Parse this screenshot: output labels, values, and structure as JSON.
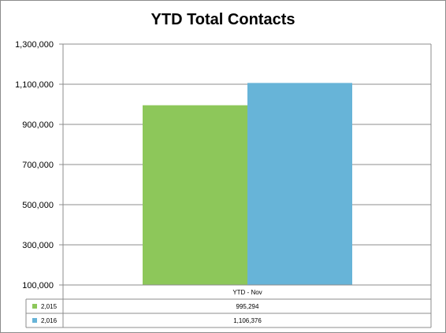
{
  "chart_data": {
    "type": "bar",
    "title": "YTD Total Contacts",
    "categories": [
      "YTD - Nov"
    ],
    "series": [
      {
        "name": "2,015",
        "values": [
          995294
        ],
        "value_label": "995,294",
        "color": "#8DC75A"
      },
      {
        "name": "2,016",
        "values": [
          1106376
        ],
        "value_label": "1,106,376",
        "color": "#67B4D8"
      }
    ],
    "ylim": [
      100000,
      1300000
    ],
    "yticks": [
      100000,
      300000,
      500000,
      700000,
      900000,
      1100000,
      1300000
    ],
    "ytick_labels": [
      "100,000",
      "300,000",
      "500,000",
      "700,000",
      "900,000",
      "1,100,000",
      "1,300,000"
    ],
    "grid": true,
    "legend": "data-table"
  }
}
